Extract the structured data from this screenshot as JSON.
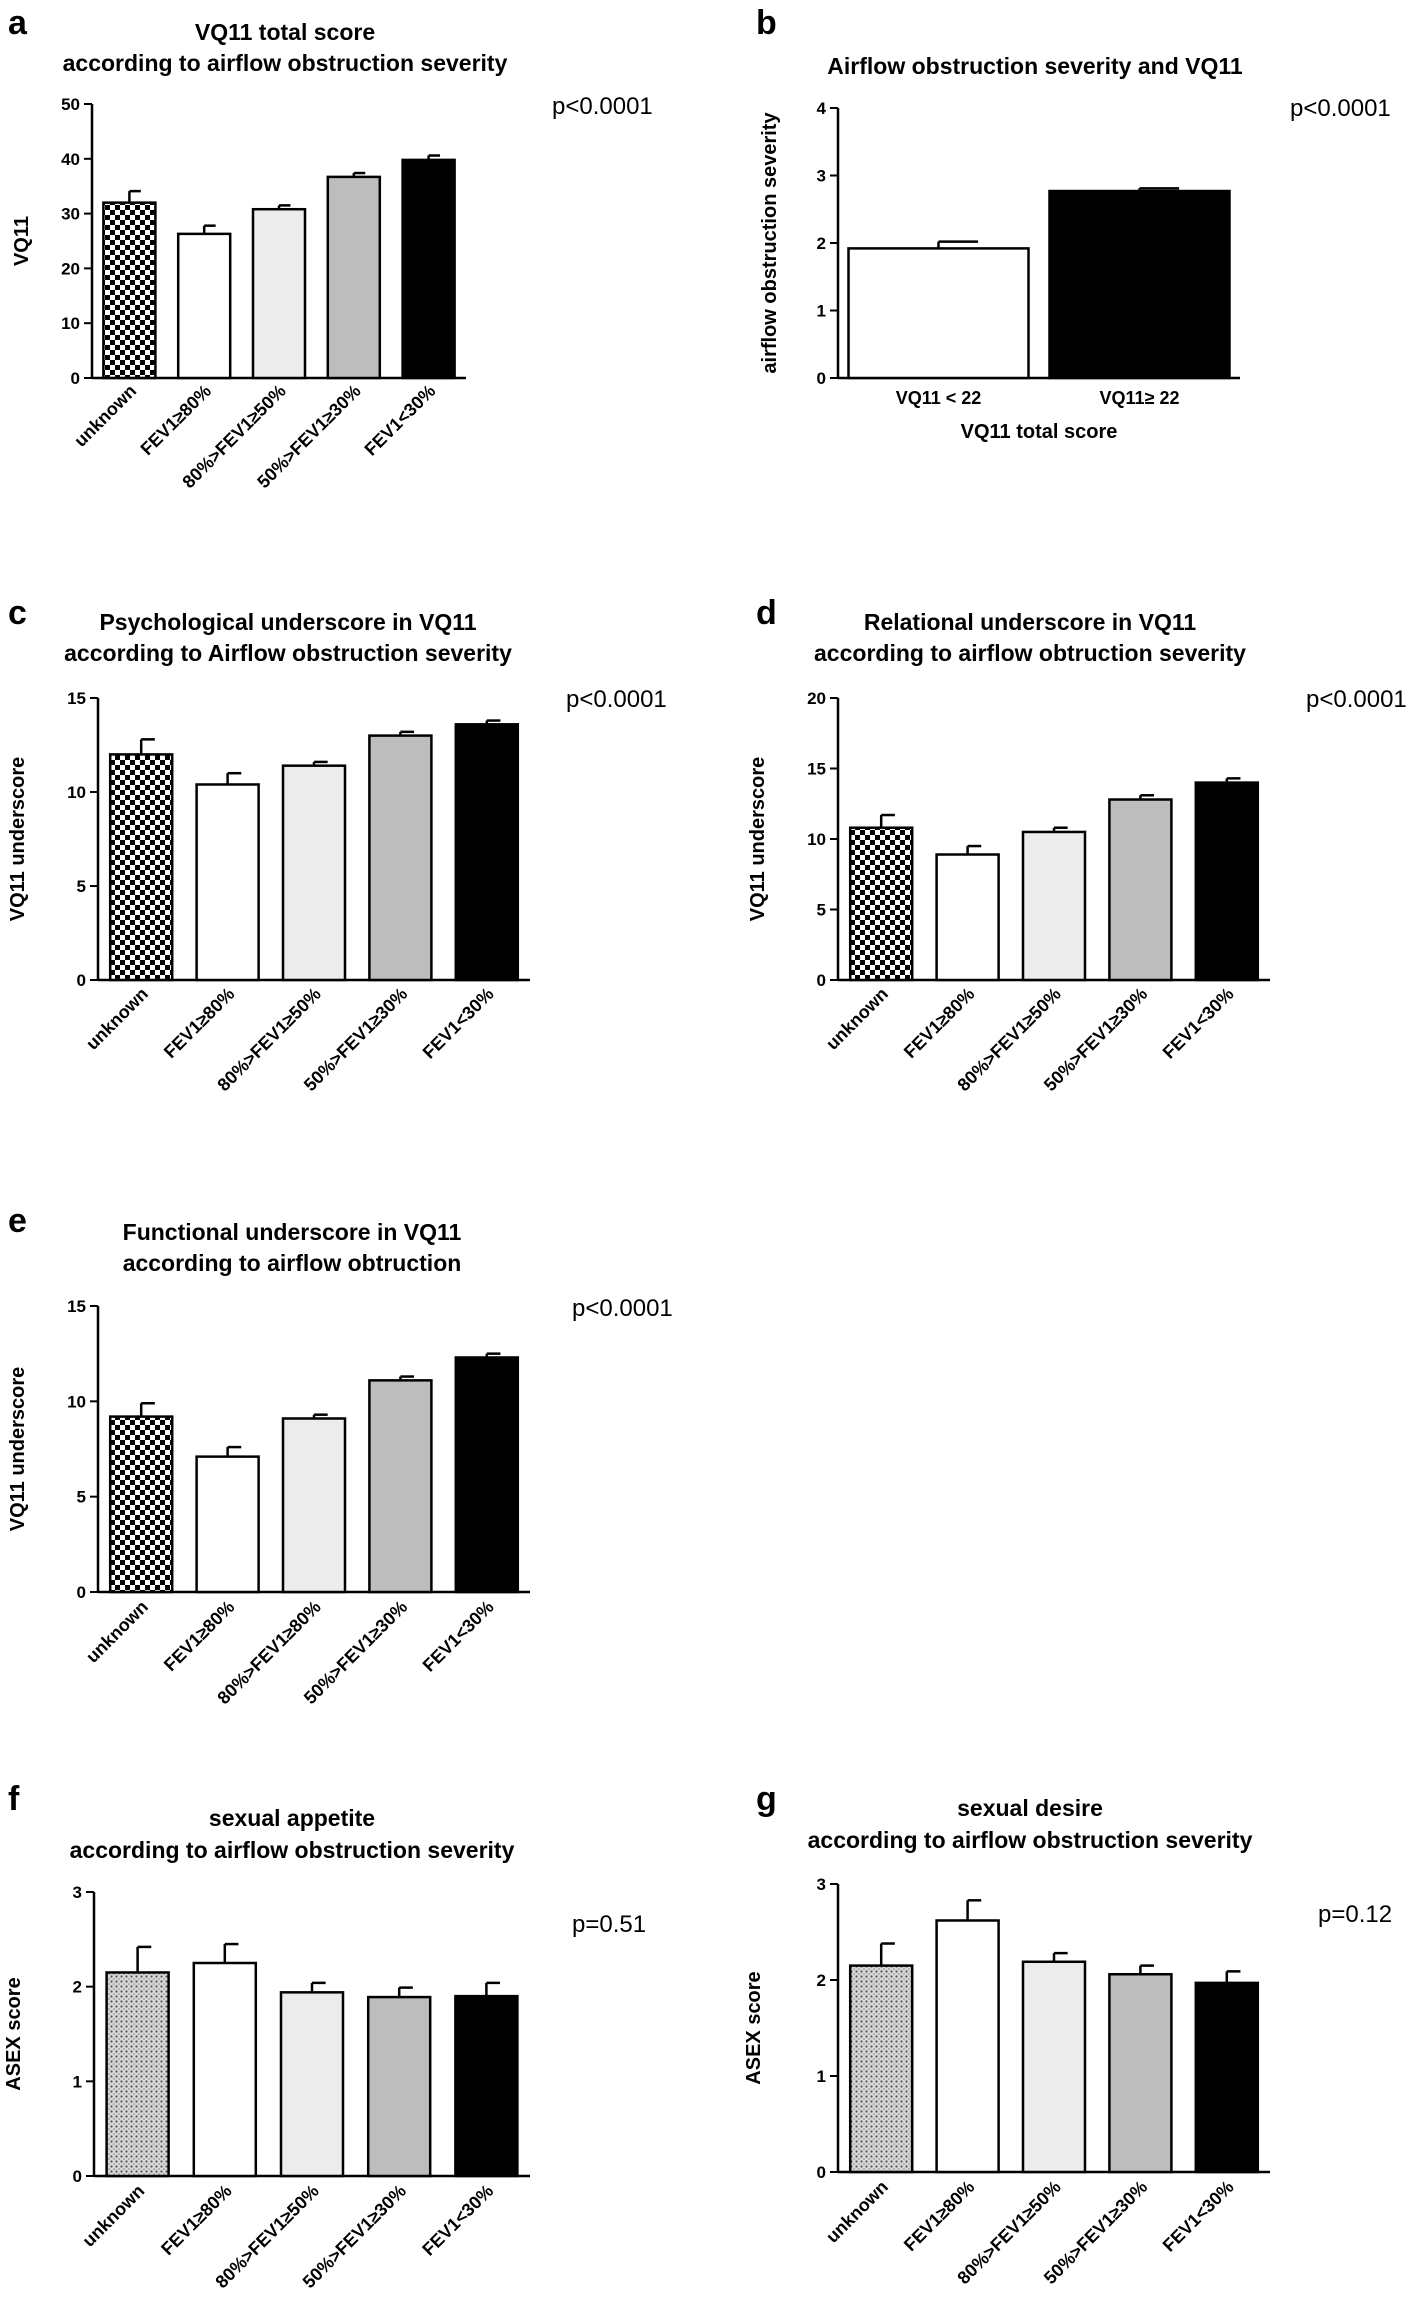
{
  "chart_data": [
    {
      "id": "a",
      "type": "bar",
      "panel_label": "a",
      "title": [
        "VQ11 total score",
        "according to airflow obstruction severity"
      ],
      "ylabel": "VQ11",
      "xlabel": "",
      "ylim": [
        0,
        50
      ],
      "yticks": [
        0,
        10,
        20,
        30,
        40,
        50
      ],
      "p_value": "p<0.0001",
      "categories": [
        "unknown",
        "FEV1≥80%",
        "80%>FEV1≥50%",
        "50%>FEV1≥30%",
        "FEV1<30%"
      ],
      "values": [
        32,
        26.3,
        30.8,
        36.7,
        39.8
      ],
      "errors": [
        2.1,
        1.5,
        0.7,
        0.7,
        0.8
      ],
      "fills": [
        "checker",
        "#ffffff",
        "#ececec",
        "#bdbdbd",
        "#000000"
      ],
      "grid": false
    },
    {
      "id": "b",
      "type": "bar",
      "panel_label": "b",
      "title": [
        "Airflow obstruction severity and VQ11"
      ],
      "ylabel": "airflow obstruction severity",
      "xlabel": "VQ11 total score",
      "ylim": [
        0,
        4
      ],
      "yticks": [
        0,
        1,
        2,
        3,
        4
      ],
      "p_value": "p<0.0001",
      "categories": [
        "VQ11 < 22",
        "VQ11≥ 22"
      ],
      "values": [
        1.92,
        2.77
      ],
      "errors": [
        0.1,
        0.04
      ],
      "fills": [
        "#ffffff",
        "#000000"
      ],
      "grid": false
    },
    {
      "id": "c",
      "type": "bar",
      "panel_label": "c",
      "title": [
        "Psychological underscore in VQ11",
        "according to Airflow obstruction severity"
      ],
      "ylabel": "VQ11 underscore",
      "xlabel": "",
      "ylim": [
        0,
        15
      ],
      "yticks": [
        0,
        5,
        10,
        15
      ],
      "p_value": "p<0.0001",
      "categories": [
        "unknown",
        "FEV1≥80%",
        "80%>FEV1≥50%",
        "50%>FEV1≥30%",
        "FEV1<30%"
      ],
      "values": [
        12,
        10.4,
        11.4,
        13,
        13.6
      ],
      "errors": [
        0.8,
        0.6,
        0.2,
        0.2,
        0.2
      ],
      "fills": [
        "checker",
        "#ffffff",
        "#ececec",
        "#bdbdbd",
        "#000000"
      ],
      "grid": false
    },
    {
      "id": "d",
      "type": "bar",
      "panel_label": "d",
      "title": [
        "Relational underscore in VQ11",
        "according to airflow obtruction severity"
      ],
      "ylabel": "VQ11 underscore",
      "xlabel": "",
      "ylim": [
        0,
        20
      ],
      "yticks": [
        0,
        5,
        10,
        15,
        20
      ],
      "p_value": "p<0.0001",
      "categories": [
        "unknown",
        "FEV1≥80%",
        "80%>FEV1≥50%",
        "50%>FEV1≥30%",
        "FEV1<30%"
      ],
      "values": [
        10.8,
        8.9,
        10.5,
        12.8,
        14
      ],
      "errors": [
        0.9,
        0.6,
        0.3,
        0.3,
        0.3
      ],
      "fills": [
        "checker",
        "#ffffff",
        "#ececec",
        "#bdbdbd",
        "#000000"
      ],
      "grid": false
    },
    {
      "id": "e",
      "type": "bar",
      "panel_label": "e",
      "title": [
        "Functional underscore in VQ11",
        "according to airflow obtruction"
      ],
      "ylabel": "VQ11 underscore",
      "xlabel": "",
      "ylim": [
        0,
        15
      ],
      "yticks": [
        0,
        5,
        10,
        15
      ],
      "p_value": "p<0.0001",
      "categories": [
        "unknown",
        "FEV1≥80%",
        "80%>FEV1≥80%",
        "50%>FEV1≥30%",
        "FEV1<30%"
      ],
      "values": [
        9.2,
        7.1,
        9.1,
        11.1,
        12.3
      ],
      "errors": [
        0.7,
        0.5,
        0.2,
        0.2,
        0.2
      ],
      "fills": [
        "checker",
        "#ffffff",
        "#ececec",
        "#bdbdbd",
        "#000000"
      ],
      "grid": false
    },
    {
      "id": "f",
      "type": "bar",
      "panel_label": "f",
      "title": [
        "sexual appetite",
        "according to airflow obstruction severity"
      ],
      "ylabel": "ASEX score",
      "xlabel": "",
      "ylim": [
        0,
        3
      ],
      "yticks": [
        0,
        1,
        2,
        3
      ],
      "p_value": "p=0.51",
      "categories": [
        "unknown",
        "FEV1≥80%",
        "80%>FEV1≥50%",
        "50%>FEV1≥30%",
        "FEV1<30%"
      ],
      "values": [
        2.15,
        2.25,
        1.94,
        1.89,
        1.9
      ],
      "errors": [
        0.27,
        0.2,
        0.1,
        0.1,
        0.14
      ],
      "fills": [
        "dots",
        "#ffffff",
        "#ececec",
        "#bdbdbd",
        "#000000"
      ],
      "grid": false
    },
    {
      "id": "g",
      "type": "bar",
      "panel_label": "g",
      "title": [
        "sexual desire",
        "according to airflow obstruction severity"
      ],
      "ylabel": "ASEX score",
      "xlabel": "",
      "ylim": [
        0,
        3
      ],
      "yticks": [
        0,
        1,
        2,
        3
      ],
      "p_value": "p=0.12",
      "categories": [
        "unknown",
        "FEV1≥80%",
        "80%>FEV1≥50%",
        "50%>FEV1≥30%",
        "FEV1<30%"
      ],
      "values": [
        2.15,
        2.62,
        2.19,
        2.06,
        1.97
      ],
      "errors": [
        0.23,
        0.21,
        0.09,
        0.09,
        0.12
      ],
      "fills": [
        "dots",
        "#ffffff",
        "#ececec",
        "#bdbdbd",
        "#000000"
      ],
      "grid": false
    }
  ]
}
